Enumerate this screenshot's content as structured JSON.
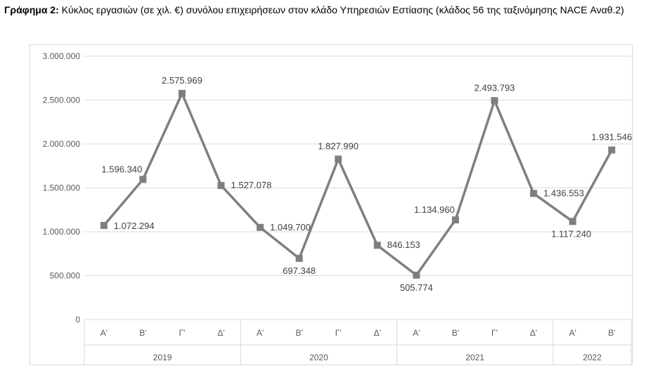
{
  "caption": {
    "label": "Γράφημα 2:",
    "text": "Κύκλος εργασιών (σε χιλ. €) συνόλου επιχειρήσεων στον κλάδο Υπηρεσιών Εστίασης (κλάδος 56 της ταξινόμησης NACE Αναθ.2)"
  },
  "chart_data": {
    "type": "line",
    "title": "",
    "xlabel": "",
    "ylabel": "",
    "ylim": [
      0,
      3000000
    ],
    "yticks": [
      0,
      500000,
      1000000,
      1500000,
      2000000,
      2500000,
      3000000
    ],
    "ytick_labels": [
      "0",
      "500.000",
      "1.000.000",
      "1.500.000",
      "2.000.000",
      "2.500.000",
      "3.000.000"
    ],
    "grid": true,
    "legend": "none",
    "colors": {
      "series": "#7f7f7f",
      "grid": "#d9d9d9",
      "axis_text": "#595959",
      "label_text": "#404040"
    },
    "categories": [
      "Α'",
      "Β'",
      "Γ'",
      "Δ'",
      "Α'",
      "Β'",
      "Γ'",
      "Δ'",
      "Α'",
      "Β'",
      "Γ'",
      "Δ'",
      "Α'",
      "Β'"
    ],
    "groups": [
      {
        "label": "2019",
        "count": 4
      },
      {
        "label": "2020",
        "count": 4
      },
      {
        "label": "2021",
        "count": 4
      },
      {
        "label": "2022",
        "count": 2
      }
    ],
    "series": [
      {
        "values": [
          1072294,
          1596340,
          2575969,
          1527078,
          1049700,
          697348,
          1827990,
          846153,
          505774,
          1134960,
          2493793,
          1436553,
          1117240,
          1931546
        ],
        "data_labels": [
          "1.072.294",
          "1.596.340",
          "2.575.969",
          "1.527.078",
          "1.049.700",
          "697.348",
          "1.827.990",
          "846.153",
          "505.774",
          "1.134.960",
          "2.493.793",
          "1.436.553",
          "1.117.240",
          "1.931.546"
        ]
      }
    ]
  }
}
